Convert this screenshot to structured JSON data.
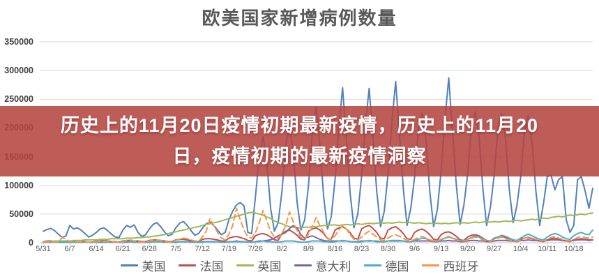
{
  "banner": {
    "lines": [
      "历史上的11月20日疫情初期最新疫情，历史上的11月20",
      "日，疫情初期的最新疫情洞察"
    ],
    "background_color": "#B4443F",
    "background_opacity": 0.87,
    "text_color": "#FFFFFF"
  },
  "chart_data": {
    "type": "line",
    "title": "欧美国家新增病例数量",
    "xlabel": "",
    "ylabel": "",
    "ylim": [
      0,
      350000
    ],
    "y_ticks": [
      0,
      50000,
      100000,
      150000,
      200000,
      250000,
      300000,
      350000
    ],
    "x_tick_labels": [
      "5/31",
      "6/7",
      "6/14",
      "6/21",
      "6/28",
      "7/5",
      "7/12",
      "7/19",
      "7/26",
      "8/2",
      "8/9",
      "8/16",
      "8/23",
      "8/30",
      "9/6",
      "9/13",
      "9/20",
      "9/27",
      "10/4",
      "10/11",
      "10/18"
    ],
    "x_tick_days": [
      0,
      7,
      14,
      21,
      28,
      35,
      42,
      49,
      56,
      63,
      70,
      77,
      84,
      91,
      98,
      105,
      112,
      119,
      126,
      133,
      140
    ],
    "x_unit": "day (daily values starting 5/31)",
    "grid": "horizontal",
    "gridline_color": "#D9D9D9",
    "axis_text_color": "#595959",
    "legend_position": "bottom",
    "series": [
      {
        "name": "美国",
        "key": "usa",
        "color": "#4F81BD",
        "style": "solid",
        "values": [
          20000,
          23000,
          25000,
          21000,
          15000,
          9000,
          12000,
          30000,
          24000,
          26000,
          22000,
          16000,
          10000,
          13000,
          18000,
          24000,
          26000,
          21000,
          15000,
          10000,
          9000,
          22000,
          30000,
          27000,
          31000,
          18000,
          11000,
          14000,
          24000,
          32000,
          35000,
          28000,
          19000,
          12000,
          15000,
          26000,
          34000,
          37000,
          30000,
          21000,
          13000,
          16000,
          25000,
          33000,
          36000,
          30000,
          22000,
          14000,
          18000,
          40000,
          55000,
          66000,
          70000,
          64000,
          18000,
          16000,
          80000,
          150000,
          185000,
          140000,
          60000,
          20000,
          35000,
          90000,
          170000,
          205000,
          155000,
          70000,
          22000,
          40000,
          100000,
          190000,
          236000,
          170000,
          80000,
          24000,
          45000,
          110000,
          200000,
          270000,
          180000,
          85000,
          26000,
          50000,
          115000,
          205000,
          269000,
          185000,
          90000,
          28000,
          55000,
          120000,
          210000,
          281000,
          190000,
          95000,
          30000,
          60000,
          115000,
          200000,
          225000,
          180000,
          90000,
          28000,
          58000,
          125000,
          215000,
          287000,
          195000,
          100000,
          32000,
          65000,
          120000,
          205000,
          228000,
          185000,
          95000,
          30000,
          62000,
          118000,
          200000,
          225000,
          180000,
          92000,
          35000,
          65000,
          115000,
          195000,
          222000,
          175000,
          90000,
          30000,
          68000,
          115000,
          118000,
          92000,
          110000,
          115000,
          40000,
          18000,
          30000,
          110000,
          115000,
          90000,
          60000,
          95000
        ]
      },
      {
        "name": "法国",
        "key": "france",
        "color": "#C0504D",
        "style": "solid",
        "values": [
          2000,
          3000,
          3000,
          2000,
          2000,
          1000,
          1000,
          2000,
          3000,
          3000,
          3000,
          2000,
          1000,
          1000,
          3000,
          3000,
          4000,
          3000,
          2000,
          2000,
          1000,
          3000,
          4000,
          4000,
          3000,
          3000,
          2000,
          2000,
          4000,
          5000,
          5000,
          4000,
          3000,
          2000,
          2000,
          5000,
          6000,
          6000,
          5000,
          4000,
          3000,
          2000,
          6000,
          7000,
          7000,
          6000,
          5000,
          3000,
          3000,
          8000,
          10000,
          11000,
          9000,
          7000,
          4000,
          3000,
          12000,
          15000,
          16000,
          14000,
          10000,
          5000,
          4000,
          16000,
          20000,
          22000,
          18000,
          13000,
          6000,
          5000,
          20000,
          24000,
          26000,
          22000,
          16000,
          7000,
          6000,
          22000,
          26000,
          28000,
          24000,
          17000,
          8000,
          6000,
          24000,
          28000,
          30000,
          25000,
          18000,
          8000,
          7000,
          22000,
          26000,
          28000,
          23000,
          16000,
          7000,
          6000,
          18000,
          22000,
          24000,
          20000,
          14000,
          6000,
          5000,
          14000,
          18000,
          19000,
          16000,
          11000,
          5000,
          4000,
          10000,
          13000,
          14000,
          12000,
          8000,
          4000,
          3000,
          8000,
          10000,
          11000,
          9000,
          6000,
          3000,
          3000,
          6000,
          8000,
          9000,
          7000,
          5000,
          3000,
          2000,
          5000,
          7000,
          8000,
          6000,
          4000,
          3000,
          2000,
          5000,
          6000,
          7000,
          6000,
          5000,
          5000
        ]
      },
      {
        "name": "英国",
        "key": "uk",
        "color": "#9BBB59",
        "style": "solid",
        "values": [
          2000,
          2000,
          2000,
          3000,
          3000,
          3000,
          3000,
          3000,
          4000,
          4000,
          4000,
          5000,
          5000,
          5000,
          5000,
          6000,
          6000,
          6000,
          7000,
          7000,
          7000,
          7000,
          8000,
          8000,
          8000,
          9000,
          9000,
          10000,
          10000,
          11000,
          12000,
          13000,
          14000,
          16000,
          18000,
          19000,
          21000,
          22000,
          24000,
          25000,
          27000,
          28000,
          30000,
          32000,
          33000,
          35000,
          36000,
          38000,
          40000,
          42000,
          44000,
          46000,
          48000,
          50000,
          52000,
          53000,
          52000,
          50000,
          48000,
          45000,
          42000,
          38000,
          35000,
          33000,
          30000,
          28000,
          27000,
          26000,
          26000,
          27000,
          27000,
          28000,
          28000,
          29000,
          30000,
          30000,
          31000,
          31000,
          30000,
          31000,
          32000,
          31000,
          32000,
          33000,
          32000,
          33000,
          34000,
          33000,
          34000,
          35000,
          34000,
          35000,
          34000,
          35000,
          36000,
          35000,
          36000,
          35000,
          34000,
          35000,
          34000,
          33000,
          34000,
          33000,
          34000,
          33000,
          34000,
          33000,
          34000,
          35000,
          34000,
          35000,
          34000,
          35000,
          36000,
          35000,
          36000,
          37000,
          36000,
          37000,
          36000,
          37000,
          38000,
          37000,
          38000,
          39000,
          38000,
          39000,
          40000,
          41000,
          40000,
          42000,
          43000,
          42000,
          44000,
          45000,
          46000,
          45000,
          47000,
          48000,
          47000,
          49000,
          50000,
          49000,
          51000,
          52000
        ]
      },
      {
        "name": "意大利",
        "key": "italy",
        "color": "#8064A2",
        "style": "solid",
        "values": [
          1000,
          1000,
          1000,
          1000,
          1000,
          1000,
          1000,
          1000,
          1000,
          1000,
          1000,
          1000,
          1000,
          1000,
          1000,
          1000,
          1000,
          1000,
          1000,
          1000,
          1000,
          1000,
          1000,
          2000,
          1000,
          1000,
          1000,
          1000,
          1000,
          2000,
          2000,
          2000,
          1000,
          1000,
          1000,
          1000,
          2000,
          2000,
          2000,
          2000,
          1000,
          1000,
          2000,
          2000,
          2000,
          2000,
          2000,
          1000,
          1000,
          2000,
          2000,
          3000,
          2000,
          2000,
          1000,
          1000,
          2000,
          3000,
          3000,
          4000,
          5000,
          8000,
          12000,
          15000,
          18000,
          25000,
          30000,
          26000,
          14000,
          8000,
          10000,
          12000,
          9000,
          6000,
          4000,
          3000,
          3000,
          3000,
          3000,
          3000,
          3000,
          2000,
          2000,
          2000,
          3000,
          3000,
          3000,
          3000,
          2000,
          2000,
          2000,
          3000,
          3000,
          3000,
          3000,
          3000,
          2000,
          2000,
          3000,
          3000,
          3000,
          3000,
          3000,
          2000,
          2000,
          3000,
          3000,
          4000,
          3000,
          3000,
          2000,
          2000,
          3000,
          4000,
          4000,
          3000,
          3000,
          2000,
          2000,
          3000,
          4000,
          4000,
          4000,
          3000,
          3000,
          2000,
          4000,
          4000,
          5000,
          4000,
          4000,
          3000,
          3000,
          4000,
          5000,
          5000,
          5000,
          4000,
          4000,
          3000,
          4000,
          5000,
          5000,
          5000,
          4000,
          5000
        ]
      },
      {
        "name": "德国",
        "key": "germany",
        "color": "#4BACC6",
        "style": "solid",
        "values": [
          1000,
          1000,
          1000,
          1000,
          1000,
          1000,
          1000,
          1000,
          1000,
          1000,
          1000,
          1000,
          1000,
          1000,
          1000,
          2000,
          1000,
          1000,
          1000,
          1000,
          1000,
          1000,
          2000,
          2000,
          1000,
          1000,
          1000,
          1000,
          1000,
          2000,
          2000,
          2000,
          1000,
          1000,
          1000,
          1000,
          2000,
          2000,
          2000,
          1000,
          1000,
          1000,
          1000,
          2000,
          2000,
          2000,
          2000,
          1000,
          1000,
          2000,
          2000,
          2000,
          2000,
          2000,
          1000,
          1000,
          2000,
          2000,
          3000,
          2000,
          2000,
          1000,
          1000,
          2000,
          3000,
          3000,
          3000,
          2000,
          1000,
          1000,
          2000,
          3000,
          3000,
          3000,
          2000,
          2000,
          1000,
          2000,
          3000,
          4000,
          3000,
          2000,
          2000,
          1000,
          2000,
          3000,
          4000,
          3000,
          3000,
          2000,
          2000,
          3000,
          4000,
          4000,
          4000,
          3000,
          2000,
          2000,
          4000,
          6000,
          8000,
          7000,
          5000,
          3000,
          2000,
          5000,
          8000,
          10000,
          8000,
          6000,
          4000,
          3000,
          6000,
          9000,
          12000,
          10000,
          7000,
          4000,
          3000,
          7000,
          10000,
          13000,
          11000,
          8000,
          5000,
          4000,
          8000,
          12000,
          15000,
          12000,
          9000,
          6000,
          5000,
          10000,
          14000,
          16000,
          14000,
          10000,
          7000,
          6000,
          12000,
          16000,
          18000,
          15000,
          14000,
          22000
        ]
      },
      {
        "name": "西班牙",
        "key": "spain",
        "color": "#F79646",
        "style": "dashed",
        "values": [
          1000,
          2000,
          2000,
          1000,
          1000,
          9000,
          6000,
          2000,
          3000,
          2000,
          2000,
          1000,
          1000,
          1000,
          2000,
          3000,
          3000,
          2000,
          2000,
          1000,
          1000,
          2000,
          4000,
          5000,
          3000,
          2000,
          1000,
          1000,
          3000,
          5000,
          5000,
          4000,
          2000,
          1000,
          1000,
          4000,
          6000,
          8000,
          7000,
          5000,
          3000,
          2000,
          10000,
          20000,
          42000,
          30000,
          18000,
          8000,
          5000,
          15000,
          30000,
          60000,
          40000,
          22000,
          10000,
          8000,
          18000,
          35000,
          56000,
          38000,
          20000,
          10000,
          8000,
          16000,
          30000,
          54000,
          36000,
          20000,
          9000,
          7000,
          15000,
          28000,
          44000,
          30000,
          18000,
          8000,
          6000,
          12000,
          22000,
          30000,
          24000,
          14000,
          6000,
          5000,
          10000,
          16000,
          20000,
          15000,
          10000,
          5000,
          4000,
          8000,
          12000,
          14000,
          11000,
          8000,
          4000,
          3000,
          6000,
          9000,
          11000,
          8000,
          5000,
          3000,
          3000,
          6000,
          9000,
          11000,
          8000,
          5000,
          3000,
          3000,
          5000,
          8000,
          10000,
          8000,
          5000,
          3000,
          3000,
          5000,
          8000,
          10000,
          7000,
          5000,
          3000,
          3000,
          5000,
          8000,
          10000,
          8000,
          6000,
          4000,
          3000,
          6000,
          9000,
          11000,
          8000,
          6000,
          4000,
          3000,
          6000,
          9000,
          11000,
          9000,
          8000,
          10000
        ]
      }
    ]
  }
}
